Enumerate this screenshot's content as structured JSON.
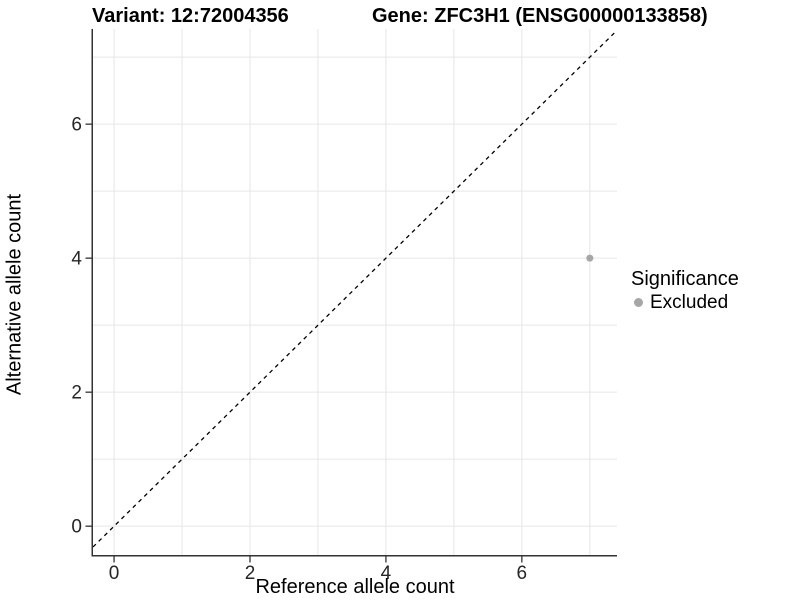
{
  "header": {
    "variant_title": "Variant: 12:72004356",
    "gene_title": "Gene: ZFC3H1 (ENSG00000133858)"
  },
  "axes": {
    "x_label": "Reference allele count",
    "y_label": "Alternative allele count"
  },
  "legend": {
    "title": "Significance",
    "items": [
      {
        "label": "Excluded",
        "color": "#a6a6a6"
      }
    ]
  },
  "chart_data": {
    "type": "scatter",
    "title": "Variant: 12:72004356   Gene: ZFC3H1 (ENSG00000133858)",
    "xlabel": "Reference allele count",
    "ylabel": "Alternative allele count",
    "xlim": [
      -0.31,
      7.4
    ],
    "ylim": [
      -0.43,
      7.42
    ],
    "x_ticks": [
      0,
      2,
      4,
      6
    ],
    "y_ticks": [
      0,
      2,
      4,
      6
    ],
    "grid_lines_x": [
      0,
      1,
      2,
      3,
      4,
      5,
      6,
      7
    ],
    "grid_lines_y": [
      0,
      1,
      2,
      3,
      4,
      5,
      6,
      7
    ],
    "series": [
      {
        "name": "Excluded",
        "points": [
          {
            "x": 7,
            "y": 4
          }
        ],
        "color": "#a6a6a6"
      }
    ],
    "reference_line": {
      "type": "abline",
      "slope": 1,
      "intercept": 0,
      "style": "dashed",
      "color": "#000000"
    },
    "legend_position": "right-center",
    "grid": "on",
    "colors": {
      "background": "#ffffff",
      "gridline": "#e6e6e6",
      "axis_line": "#333333",
      "tick_text": "#262626",
      "point": "#a6a6a6"
    }
  }
}
